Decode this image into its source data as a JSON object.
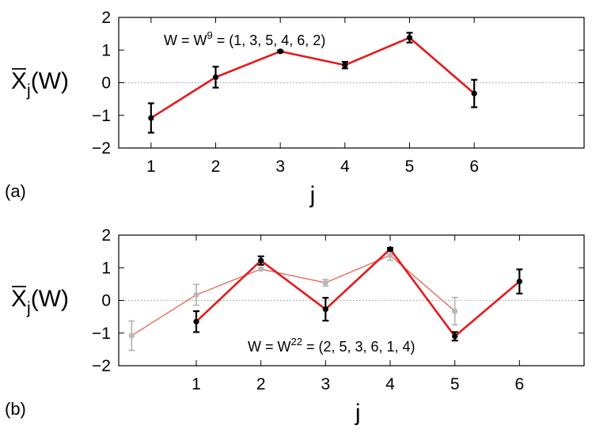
{
  "chart_data": [
    {
      "type": "line",
      "panel_label": "(a)",
      "ylabel_base": "X",
      "ylabel_sub": "j",
      "ylabel_tail": "(W)",
      "xlabel": "j",
      "annotation": {
        "pre": "W = W",
        "sup": "9",
        "post": " = (1, 3, 5, 4, 6, 2)"
      },
      "xlim": [
        0.5,
        7.7
      ],
      "ylim": [
        -2,
        2
      ],
      "xticks": [
        1,
        2,
        3,
        4,
        5,
        6
      ],
      "yticks": [
        -2,
        -1,
        0,
        1,
        2
      ],
      "ytick_labels": [
        "−2",
        "−1",
        "0",
        "1",
        "2"
      ],
      "zero_line": true,
      "series": [
        {
          "color": "#e41a1c",
          "marker_color": "#000000",
          "x": [
            1,
            2,
            3,
            4,
            5,
            6
          ],
          "y": [
            -1.08,
            0.17,
            0.96,
            0.54,
            1.38,
            -0.33
          ],
          "yerr": [
            0.45,
            0.32,
            0.03,
            0.1,
            0.15,
            0.42
          ]
        }
      ]
    },
    {
      "type": "line",
      "panel_label": "(b)",
      "ylabel_base": "X",
      "ylabel_sub": "j",
      "ylabel_tail": "(W)",
      "xlabel": "j",
      "annotation": {
        "pre": "W = W",
        "sup": "22",
        "post": " = (2, 5, 3, 6, 1, 4)"
      },
      "xlim": [
        -0.2,
        7.0
      ],
      "ylim": [
        -2,
        2
      ],
      "xticks": [
        1,
        2,
        3,
        4,
        5,
        6
      ],
      "yticks": [
        -2,
        -1,
        0,
        1,
        2
      ],
      "ytick_labels": [
        "−2",
        "−1",
        "0",
        "1",
        "2"
      ],
      "zero_line": true,
      "series": [
        {
          "color": "#ee5544",
          "marker_color": "#b8b8b8",
          "x": [
            0,
            1,
            2,
            3,
            4,
            5
          ],
          "y": [
            -1.08,
            0.17,
            0.96,
            0.54,
            1.38,
            -0.33
          ],
          "yerr": [
            0.45,
            0.32,
            0.03,
            0.1,
            0.15,
            0.42
          ]
        },
        {
          "color": "#e41a1c",
          "marker_color": "#000000",
          "x": [
            1,
            2,
            3,
            4,
            5,
            6
          ],
          "y": [
            -0.65,
            1.22,
            -0.27,
            1.57,
            -1.1,
            0.58
          ],
          "yerr": [
            0.32,
            0.13,
            0.35,
            0.04,
            0.13,
            0.37
          ]
        }
      ]
    }
  ]
}
